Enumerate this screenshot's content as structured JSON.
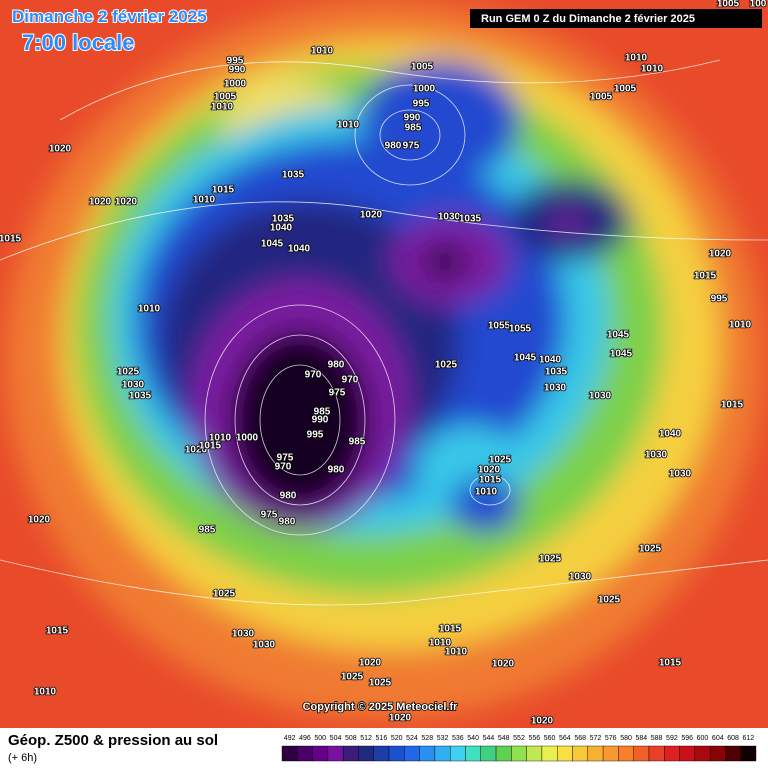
{
  "header": {
    "date": "Dimanche 2 février 2025",
    "time": "7:00 locale",
    "run": "Run GEM 0 Z du Dimanche 2 février 2025"
  },
  "map": {
    "copyright": "Copyright © 2025 Meteociel.fr",
    "pressure_labels": [
      "1005",
      "100",
      "1010",
      "995",
      "990",
      "1000",
      "1005",
      "1010",
      "1005",
      "1000",
      "995",
      "990",
      "985",
      "980",
      "975",
      "1010",
      "1010",
      "1010",
      "1005",
      "1005",
      "1020",
      "1035",
      "1015",
      "1010",
      "1020",
      "1020",
      "1015",
      "1035",
      "1040",
      "1045",
      "1040",
      "1020",
      "1030",
      "1035",
      "1020",
      "1015",
      "995",
      "1010",
      "1010",
      "1055",
      "1055",
      "1045",
      "1045",
      "1045",
      "1040",
      "1035",
      "1030",
      "1030",
      "1025",
      "1015",
      "980",
      "970",
      "970",
      "975",
      "985",
      "990",
      "995",
      "985",
      "1010",
      "1000",
      "1020",
      "1015",
      "975",
      "970",
      "980",
      "980",
      "975",
      "980",
      "985",
      "1025",
      "1030",
      "1035",
      "1040",
      "1030",
      "1030",
      "1025",
      "1020",
      "1015",
      "1010",
      "1020",
      "1025",
      "1025",
      "1030",
      "1025",
      "1025",
      "1015",
      "1030",
      "1030",
      "1015",
      "1010",
      "1010",
      "1020",
      "1025",
      "1025",
      "1020",
      "1015",
      "1010",
      "1020",
      "1020"
    ]
  },
  "legend": {
    "title": "Géop. Z500 & pression au sol",
    "subtitle": "(+ 6h)",
    "scale": [
      {
        "value": 492,
        "color": "#2d0040"
      },
      {
        "value": 496,
        "color": "#4a0068"
      },
      {
        "value": 500,
        "color": "#660088"
      },
      {
        "value": 504,
        "color": "#7a10a0"
      },
      {
        "value": 508,
        "color": "#3a1c7a"
      },
      {
        "value": 512,
        "color": "#202880"
      },
      {
        "value": 516,
        "color": "#1c3ca8"
      },
      {
        "value": 520,
        "color": "#1c50d0"
      },
      {
        "value": 524,
        "color": "#2068e8"
      },
      {
        "value": 528,
        "color": "#2890f0"
      },
      {
        "value": 532,
        "color": "#30b0f0"
      },
      {
        "value": 536,
        "color": "#40d0f0"
      },
      {
        "value": 540,
        "color": "#40e0c0"
      },
      {
        "value": 544,
        "color": "#40d080"
      },
      {
        "value": 548,
        "color": "#60d050"
      },
      {
        "value": 552,
        "color": "#90e050"
      },
      {
        "value": 556,
        "color": "#c0e850"
      },
      {
        "value": 560,
        "color": "#e8f050"
      },
      {
        "value": 564,
        "color": "#f8e040"
      },
      {
        "value": 568,
        "color": "#f8c838"
      },
      {
        "value": 572,
        "color": "#f8b030"
      },
      {
        "value": 576,
        "color": "#f89830"
      },
      {
        "value": 580,
        "color": "#f88028"
      },
      {
        "value": 584,
        "color": "#f06028"
      },
      {
        "value": 588,
        "color": "#e84028"
      },
      {
        "value": 592,
        "color": "#e02020"
      },
      {
        "value": 596,
        "color": "#c81018"
      },
      {
        "value": 600,
        "color": "#a80810"
      },
      {
        "value": 604,
        "color": "#880408"
      },
      {
        "value": 608,
        "color": "#500000"
      },
      {
        "value": 612,
        "color": "#100000"
      }
    ]
  }
}
